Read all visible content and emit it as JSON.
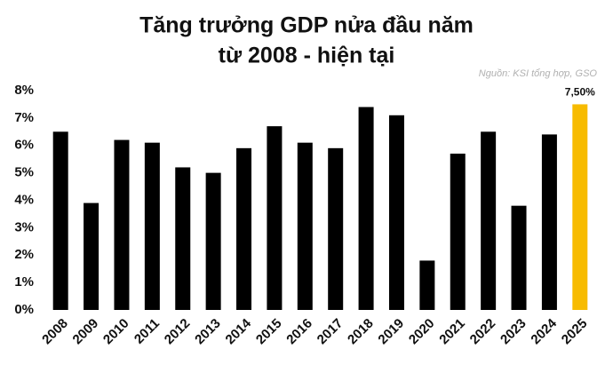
{
  "chart_data": {
    "type": "bar",
    "title": [
      "Tăng trưởng GDP nửa đầu năm",
      "từ 2008 - hiện tại"
    ],
    "source": "Nguồn: KSI tổng hợp, GSO",
    "categories": [
      "2008",
      "2009",
      "2010",
      "2011",
      "2012",
      "2013",
      "2014",
      "2015",
      "2016",
      "2017",
      "2018",
      "2019",
      "2020",
      "2021",
      "2022",
      "2023",
      "2024",
      "2025"
    ],
    "values": [
      6.5,
      3.9,
      6.2,
      6.1,
      5.2,
      5.0,
      5.9,
      6.7,
      6.1,
      5.9,
      7.4,
      7.1,
      1.8,
      5.7,
      6.5,
      3.8,
      6.4,
      7.5
    ],
    "value_labels": [
      null,
      null,
      null,
      null,
      null,
      null,
      null,
      null,
      null,
      null,
      null,
      null,
      null,
      null,
      null,
      null,
      null,
      "7,50%"
    ],
    "colors": [
      "#000000",
      "#000000",
      "#000000",
      "#000000",
      "#000000",
      "#000000",
      "#000000",
      "#000000",
      "#000000",
      "#000000",
      "#000000",
      "#000000",
      "#000000",
      "#000000",
      "#000000",
      "#000000",
      "#000000",
      "#f7bb00"
    ],
    "ylim": [
      0,
      8
    ],
    "yticks": [
      {
        "value": 0,
        "label": "0%"
      },
      {
        "value": 1,
        "label": "1%"
      },
      {
        "value": 2,
        "label": "2%"
      },
      {
        "value": 3,
        "label": "3%"
      },
      {
        "value": 4,
        "label": "4%"
      },
      {
        "value": 5,
        "label": "5%"
      },
      {
        "value": 6,
        "label": "6%"
      },
      {
        "value": 7,
        "label": "7%"
      },
      {
        "value": 8,
        "label": "8%"
      }
    ],
    "grid": false
  }
}
